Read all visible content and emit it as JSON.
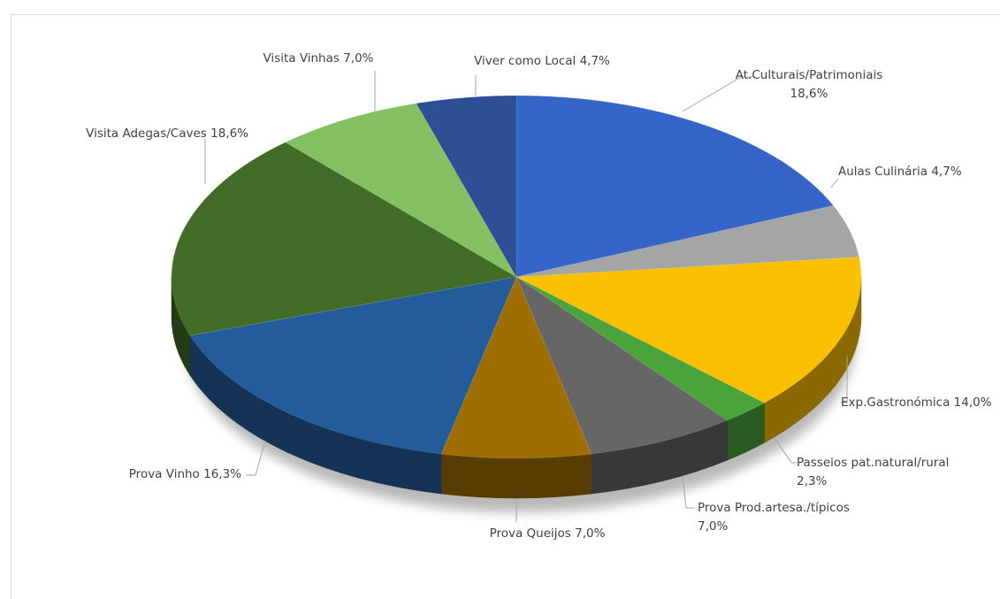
{
  "chart_data": {
    "type": "pie",
    "title": "",
    "style": "3d-tilted",
    "slices": [
      {
        "label_lines": [
          "At.Culturais/Patrimoniais",
          "18,6%"
        ],
        "value": 18.6,
        "color": "#3566c7"
      },
      {
        "label_lines": [
          "Aulas Culinária 4,7%"
        ],
        "value": 4.7,
        "color": "#a5a5a5"
      },
      {
        "label_lines": [
          "Exp.Gastronómica 14,0%"
        ],
        "value": 14.0,
        "color": "#fbc000"
      },
      {
        "label_lines": [
          "Passeios pat.natural/rural",
          "2,3%"
        ],
        "value": 2.3,
        "color": "#4aa43a"
      },
      {
        "label_lines": [
          "Prova Prod.artesa./típicos",
          "7,0%"
        ],
        "value": 7.0,
        "color": "#666666"
      },
      {
        "label_lines": [
          "Prova Queijos 7,0%"
        ],
        "value": 7.0,
        "color": "#9e6e02"
      },
      {
        "label_lines": [
          "Prova Vinho 16,3%"
        ],
        "value": 16.3,
        "color": "#245c9b"
      },
      {
        "label_lines": [
          "Visita Adegas/Caves 18,6%"
        ],
        "value": 18.6,
        "color": "#416d28"
      },
      {
        "label_lines": [
          "Visita Vinhas 7,0%"
        ],
        "value": 7.0,
        "color": "#83c061"
      },
      {
        "label_lines": [
          "Viver como Local 4,7%"
        ],
        "value": 4.7,
        "color": "#2e4f96"
      }
    ]
  }
}
